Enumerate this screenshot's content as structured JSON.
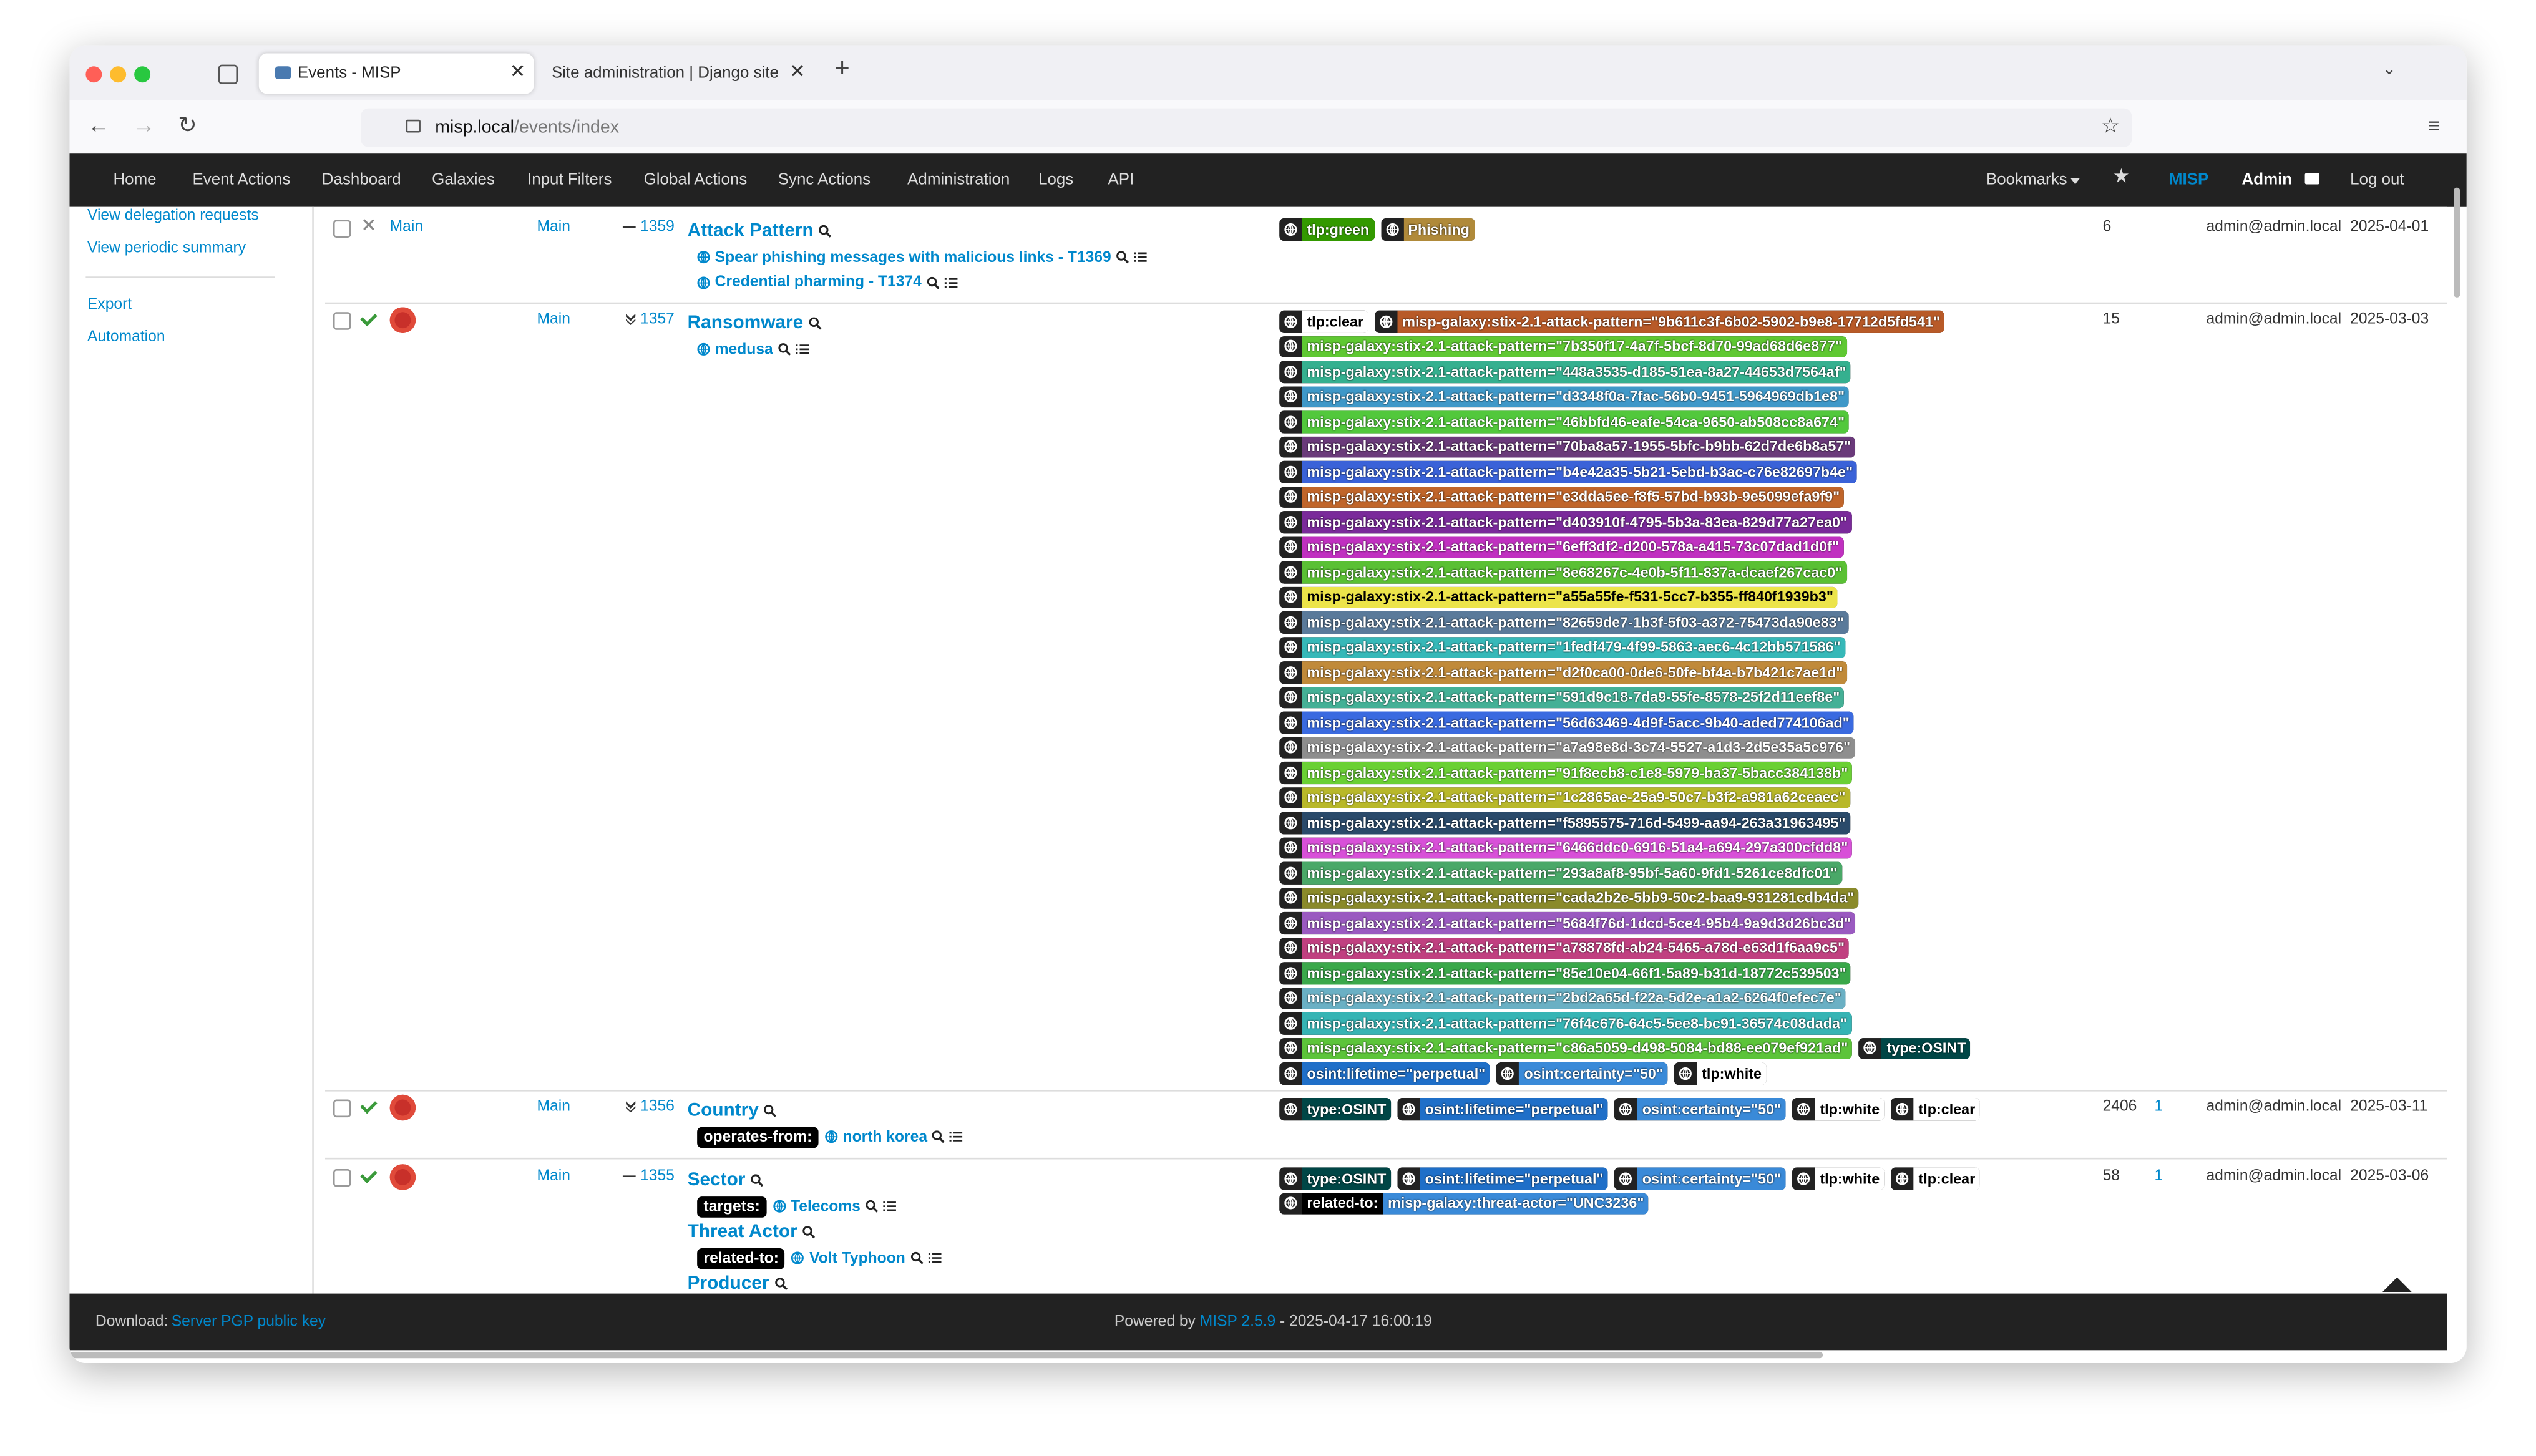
{
  "browser": {
    "tabs": [
      "Events - MISP",
      "Site administration | Django site adn"
    ],
    "url_host": "misp.local",
    "url_path": "/events/index"
  },
  "nav": {
    "items": [
      "Home",
      "Event Actions",
      "Dashboard",
      "Galaxies",
      "Input Filters",
      "Global Actions",
      "Sync Actions",
      "Administration",
      "Logs",
      "API"
    ],
    "bookmarks": "Bookmarks",
    "misp": "MISP",
    "user": "Admin",
    "logout": "Log out"
  },
  "sidebar": {
    "links": [
      "View delegation requests",
      "View periodic summary"
    ],
    "links2": [
      "Export",
      "Automation"
    ]
  },
  "events": [
    {
      "published": false,
      "org": "Main",
      "owner": "Main",
      "id_icon": "dash",
      "id": "1359",
      "galaxies": [
        {
          "name": "Attack Pattern",
          "clusters": [
            {
              "name": "Spear phishing messages with malicious links - T1369"
            },
            {
              "name": "Credential pharming - T1374"
            }
          ]
        }
      ],
      "tags": [
        {
          "name": "tlp:green",
          "color": "#339900"
        },
        {
          "name": "Phishing",
          "color": "#b08a3a"
        }
      ],
      "attributes": "6",
      "email": "admin@admin.local",
      "date": "2025-04-01"
    },
    {
      "published": true,
      "owner": "Main",
      "id_icon": "chevrons",
      "id": "1357",
      "galaxies": [
        {
          "name": "Ransomware",
          "clusters": [
            {
              "name": "medusa"
            }
          ]
        }
      ],
      "tags": [
        {
          "name": "tlp:clear",
          "color": "#ffffff"
        },
        {
          "name": "misp-galaxy:stix-2.1-attack-pattern=\"9b611c3f-6b02-5902-b9e8-17712d5fd541\"",
          "color": "#b85a28"
        },
        {
          "name": "misp-galaxy:stix-2.1-attack-pattern=\"7b350f17-4a7f-5bcf-8d70-99ad68d6e877\"",
          "color": "#5fc832"
        },
        {
          "name": "misp-galaxy:stix-2.1-attack-pattern=\"448a3535-d185-51ea-8a27-44653d7564af\"",
          "color": "#35b08f"
        },
        {
          "name": "misp-galaxy:stix-2.1-attack-pattern=\"d3348f0a-7fac-56b0-9451-5964969db1e8\"",
          "color": "#3f98c8"
        },
        {
          "name": "misp-galaxy:stix-2.1-attack-pattern=\"46bbfd46-eafe-54ca-9650-ab508cc8a674\"",
          "color": "#52c83c"
        },
        {
          "name": "misp-galaxy:stix-2.1-attack-pattern=\"70ba8a57-1955-5bfc-b9bb-62d7de6b8a57\"",
          "color": "#6a3a7a"
        },
        {
          "name": "misp-galaxy:stix-2.1-attack-pattern=\"b4e42a35-5b21-5ebd-b3ac-c76e82697b4e\"",
          "color": "#3a62d8"
        },
        {
          "name": "misp-galaxy:stix-2.1-attack-pattern=\"e3dda5ee-f8f5-57bd-b93b-9e5099efa9f9\"",
          "color": "#c0652a"
        },
        {
          "name": "misp-galaxy:stix-2.1-attack-pattern=\"d403910f-4795-5b3a-83ea-829d77a27ea0\"",
          "color": "#7a2a9a"
        },
        {
          "name": "misp-galaxy:stix-2.1-attack-pattern=\"6eff3df2-d200-578a-a415-73c07dad1d0f\"",
          "color": "#c030c0"
        },
        {
          "name": "misp-galaxy:stix-2.1-attack-pattern=\"8e68267c-4e0b-5f11-837a-dcaef267cac0\"",
          "color": "#5ac034"
        },
        {
          "name": "misp-galaxy:stix-2.1-attack-pattern=\"a55a55fe-f531-5cc7-b355-ff840f1939b3\"",
          "color": "#ece44a"
        },
        {
          "name": "misp-galaxy:stix-2.1-attack-pattern=\"82659de7-1b3f-5f03-a372-75473da90e83\"",
          "color": "#5a7a9a"
        },
        {
          "name": "misp-galaxy:stix-2.1-attack-pattern=\"1fedf479-4f99-5863-aec6-4c12bb571586\"",
          "color": "#36b8b8"
        },
        {
          "name": "misp-galaxy:stix-2.1-attack-pattern=\"d2f0ca00-0de6-50fe-bf4a-b7b421c7ae1d\"",
          "color": "#c08a3a"
        },
        {
          "name": "misp-galaxy:stix-2.1-attack-pattern=\"591d9c18-7da9-55fe-8578-25f2d11eef8e\"",
          "color": "#44b096"
        },
        {
          "name": "misp-galaxy:stix-2.1-attack-pattern=\"56d63469-4d9f-5acc-9b40-aded774106ad\"",
          "color": "#3a6ae0"
        },
        {
          "name": "misp-galaxy:stix-2.1-attack-pattern=\"a7a98e8d-3c74-5527-a1d3-2d5e35a5c976\"",
          "color": "#8e8e8e"
        },
        {
          "name": "misp-galaxy:stix-2.1-attack-pattern=\"91f8ecb8-c1e8-5979-ba37-5bacc384138b\"",
          "color": "#6ad034"
        },
        {
          "name": "misp-galaxy:stix-2.1-attack-pattern=\"1c2865ae-25a9-50c7-b3f2-a981a62ceaec\"",
          "color": "#b8b82a"
        },
        {
          "name": "misp-galaxy:stix-2.1-attack-pattern=\"f5895575-716d-5499-aa94-263a31963495\"",
          "color": "#2a4a6a"
        },
        {
          "name": "misp-galaxy:stix-2.1-attack-pattern=\"6466ddc0-6916-51a4-a694-297a300cfdd8\"",
          "color": "#d850d8"
        },
        {
          "name": "misp-galaxy:stix-2.1-attack-pattern=\"293a8af8-95bf-5a60-9fd1-5261ce8dfc01\"",
          "color": "#4aa868"
        },
        {
          "name": "misp-galaxy:stix-2.1-attack-pattern=\"cada2b2e-5bb9-50c2-baa9-931281cdb4da\"",
          "color": "#8a8a2a"
        },
        {
          "name": "misp-galaxy:stix-2.1-attack-pattern=\"5684f76d-1dcd-5ce4-95b4-9a9d3d26bc3d\"",
          "color": "#9a5ac0"
        },
        {
          "name": "misp-galaxy:stix-2.1-attack-pattern=\"a78878fd-ab24-5465-a78d-e63d1f6aa9c5\"",
          "color": "#c04080"
        },
        {
          "name": "misp-galaxy:stix-2.1-attack-pattern=\"85e10e04-66f1-5a89-b31d-18772c539503\"",
          "color": "#3aa84a"
        },
        {
          "name": "misp-galaxy:stix-2.1-attack-pattern=\"2bd2a65d-f22a-5d2e-a1a2-6264f0efec7e\"",
          "color": "#6ab0c4"
        },
        {
          "name": "misp-galaxy:stix-2.1-attack-pattern=\"76f4c676-64c5-5ee8-bc91-36574c08dada\"",
          "color": "#36b4b4"
        },
        {
          "name": "misp-galaxy:stix-2.1-attack-pattern=\"c86a5059-d498-5084-bd88-ee079ef921ad\"",
          "color": "#5cc43a"
        },
        {
          "name": "type:OSINT",
          "color": "#004646"
        },
        {
          "name": "osint:lifetime=\"perpetual\"",
          "color": "#1f6fc8"
        },
        {
          "name": "osint:certainty=\"50\"",
          "color": "#3a8ad8"
        },
        {
          "name": "tlp:white",
          "color": "#ffffff"
        }
      ],
      "attributes": "15",
      "email": "admin@admin.local",
      "date": "2025-03-03"
    },
    {
      "published": true,
      "owner": "Main",
      "id_icon": "chevrons",
      "id": "1356",
      "galaxies": [
        {
          "name": "Country",
          "clusters": [
            {
              "relation": "operates-from:",
              "name": "north korea"
            }
          ]
        }
      ],
      "tags": [
        {
          "name": "type:OSINT",
          "color": "#004646"
        },
        {
          "name": "osint:lifetime=\"perpetual\"",
          "color": "#1f6fc8"
        },
        {
          "name": "osint:certainty=\"50\"",
          "color": "#3a8ad8"
        },
        {
          "name": "tlp:white",
          "color": "#ffffff"
        },
        {
          "name": "tlp:clear",
          "color": "#ffffff"
        }
      ],
      "attributes": "2406",
      "correlations": "1",
      "email": "admin@admin.local",
      "date": "2025-03-11"
    },
    {
      "published": true,
      "owner": "Main",
      "id_icon": "dash",
      "id": "1355",
      "galaxies": [
        {
          "name": "Sector",
          "clusters": [
            {
              "relation": "targets:",
              "name": "Telecoms"
            }
          ]
        },
        {
          "name": "Threat Actor",
          "clusters": [
            {
              "relation": "related-to:",
              "name": "Volt Typhoon"
            }
          ]
        },
        {
          "name": "Producer",
          "clusters": []
        }
      ],
      "tags": [
        {
          "name": "type:OSINT",
          "color": "#004646"
        },
        {
          "name": "osint:lifetime=\"perpetual\"",
          "color": "#1f6fc8"
        },
        {
          "name": "osint:certainty=\"50\"",
          "color": "#3a8ad8"
        },
        {
          "name": "tlp:white",
          "color": "#ffffff"
        },
        {
          "name": "tlp:clear",
          "color": "#ffffff"
        },
        {
          "relation": "related-to:",
          "name": "misp-galaxy:threat-actor=\"UNC3236\"",
          "color": "#3a8ad8"
        }
      ],
      "attributes": "58",
      "correlations": "1",
      "email": "admin@admin.local",
      "date": "2025-03-06"
    }
  ],
  "footer": {
    "download_label": "Download:",
    "download_link": "Server PGP public key",
    "powered_prefix": "Powered by",
    "version": "MISP 2.5.9",
    "timestamp": "- 2025-04-17 16:00:19"
  }
}
